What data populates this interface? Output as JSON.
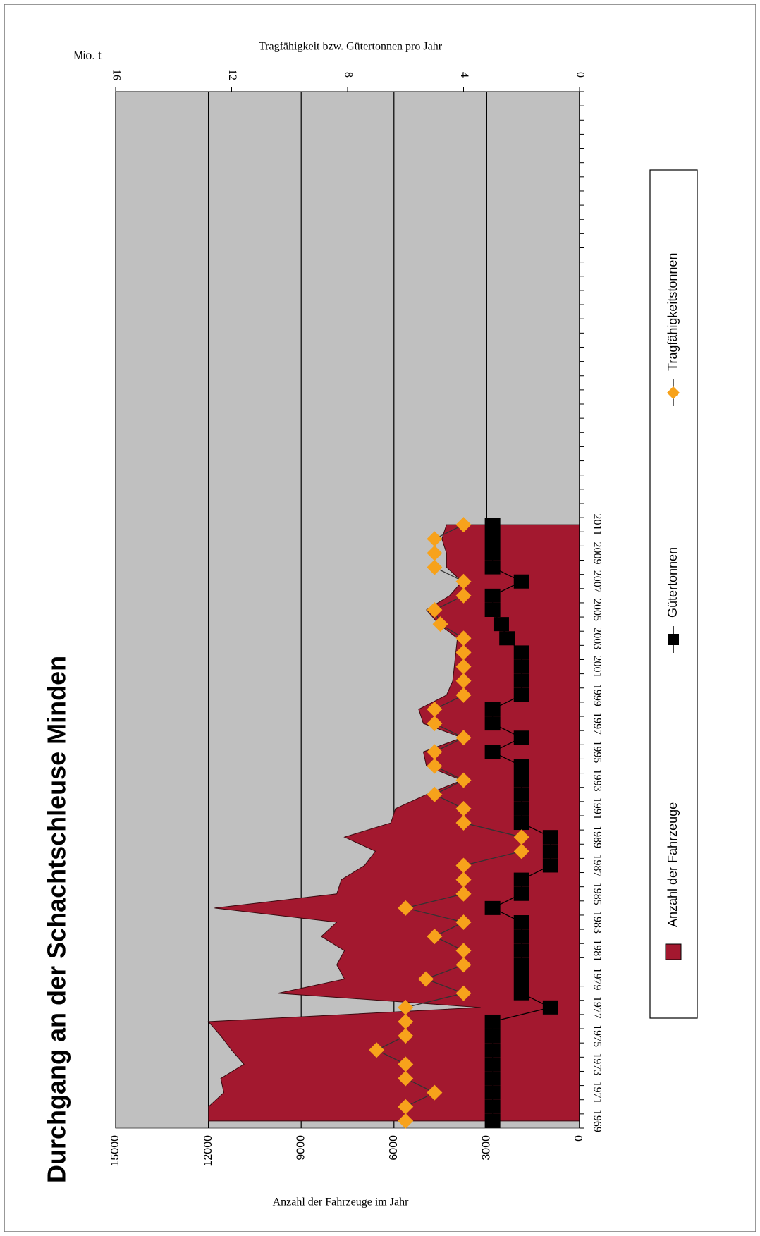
{
  "chart_data": {
    "type": "area",
    "title": "Durchgang an der Schachtschleuse Minden",
    "y_label": "Anzahl der Fahrzeuge im Jahr",
    "y2_label": "Tragfähigkeit bzw. Gütertonnen pro Jahr",
    "y2_unit": "Mio. t",
    "categories": [
      "1969",
      null,
      "1971",
      null,
      "1973",
      null,
      "1975",
      null,
      "1977",
      null,
      "1979",
      null,
      "1981",
      null,
      "1983",
      null,
      "1985",
      null,
      "1987",
      null,
      "1989",
      null,
      "1991",
      null,
      "1993",
      null,
      "1995",
      null,
      "1997",
      null,
      "1999",
      null,
      "2001",
      null,
      "2003",
      null,
      "2005",
      null,
      "2007",
      null,
      "2009",
      null,
      "2011",
      null,
      null,
      null,
      null,
      null,
      null,
      null,
      null,
      null,
      null,
      null,
      null,
      null,
      null,
      null,
      null,
      null,
      null,
      null,
      null,
      null,
      null,
      null,
      null,
      null,
      null,
      null,
      null,
      null,
      null
    ],
    "ylim": [
      0,
      15000
    ],
    "yticks": [
      0,
      3000,
      6000,
      9000,
      12000,
      15000
    ],
    "y2lim": [
      0,
      16
    ],
    "y2ticks": [
      0,
      4,
      8,
      12,
      16
    ],
    "grid": true,
    "legend": "right",
    "series": [
      {
        "name": "Anzahl der Fahrzeuge",
        "type": "area",
        "axis": "y",
        "color": "#a3182f",
        "values": [
          12000,
          12000,
          11500,
          11600,
          10850,
          11250,
          11600,
          12000,
          3200,
          9750,
          7600,
          7850,
          7600,
          8350,
          7850,
          11800,
          7850,
          7700,
          6950,
          6600,
          7600,
          6100,
          5950,
          4950,
          3800,
          4950,
          5050,
          3800,
          5050,
          5200,
          4300,
          4100,
          4050,
          4000,
          3950,
          4550,
          4950,
          4200,
          3800,
          4300,
          4300,
          4450,
          4300,
          null,
          null,
          null,
          null,
          null,
          null,
          null,
          null,
          null,
          null,
          null,
          null,
          null,
          null,
          null,
          null,
          null,
          null,
          null,
          null,
          null,
          null,
          null,
          null,
          null,
          null,
          null,
          null,
          null,
          null
        ]
      },
      {
        "name": "Gütertonnen",
        "type": "line",
        "axis": "y2",
        "marker": "square",
        "color": "#000000",
        "line_color": "#000000",
        "values": [
          3,
          3,
          3,
          3,
          3,
          3,
          3,
          3,
          1,
          2,
          2,
          2,
          2,
          2,
          2,
          3,
          2,
          2,
          1,
          1,
          1,
          2,
          2,
          2,
          2,
          2,
          3,
          2,
          3,
          3,
          2,
          2,
          2,
          2,
          2.5,
          2.7,
          3,
          3,
          2,
          3,
          3,
          3,
          3,
          null,
          null,
          null,
          null,
          null,
          null,
          null,
          null,
          null,
          null,
          null,
          null,
          null,
          null,
          null,
          null,
          null,
          null,
          null,
          null,
          null,
          null,
          null,
          null,
          null,
          null,
          null,
          null,
          null,
          null
        ]
      },
      {
        "name": "Tragfähigkeitstonnen",
        "type": "line",
        "axis": "y2",
        "marker": "diamond",
        "color": "#f7a21b",
        "line_color": "#333333",
        "values": [
          6,
          6,
          5,
          6,
          6,
          7,
          6,
          6,
          6,
          4,
          5.3,
          4,
          4,
          5,
          4,
          6,
          4,
          4,
          4,
          2,
          2,
          4,
          4,
          5,
          4,
          5,
          5,
          4,
          5,
          5,
          4,
          4,
          4,
          4,
          4,
          4.8,
          5,
          4,
          4,
          5,
          5,
          5,
          4,
          null,
          null,
          null,
          null,
          null,
          null,
          null,
          null,
          null,
          null,
          null,
          null,
          null,
          null,
          null,
          null,
          null,
          null,
          null,
          null,
          null,
          null,
          null,
          null,
          null,
          null,
          null,
          null,
          null,
          null
        ]
      }
    ]
  }
}
